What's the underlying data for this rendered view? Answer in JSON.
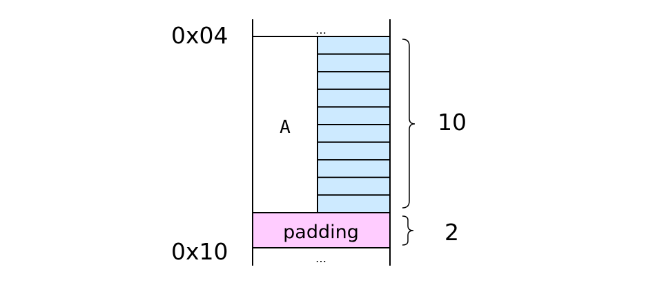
{
  "addresses": {
    "top": "0x04",
    "bottom": "0x10"
  },
  "ellipsis_top": "…",
  "ellipsis_bottom": "…",
  "array": {
    "label": "A",
    "cell_count": 10,
    "fill_color": "#cdeaff"
  },
  "padding": {
    "label": "padding",
    "fill_color": "#ffccff"
  },
  "braces": {
    "array_count": "10",
    "padding_count": "2"
  },
  "colors": {
    "line": "#000000"
  }
}
